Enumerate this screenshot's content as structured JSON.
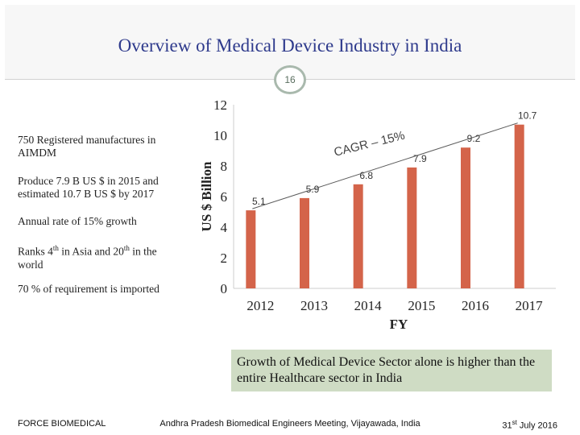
{
  "header": {
    "title": "Overview of Medical Device Industry in India",
    "slide_number": "16"
  },
  "bullets": [
    "750 Registered manufactures in AIMDM",
    "Produce 7.9 B US $ in 2015 and estimated 10.7 B US $ by 2017",
    "Annual rate of 15% growth",
    {
      "before": "Ranks 4",
      "sup1": "th",
      "middle": " in Asia and 20",
      "sup2": "th",
      "after": " in the world"
    },
    "70 % of requirement is imported"
  ],
  "note": "Growth of Medical Device Sector alone is higher than the entire Healthcare sector in India",
  "footer": {
    "left": "FORCE BIOMEDICAL",
    "center": "Andhra Pradesh Biomedical Engineers Meeting, Vijayawada, India",
    "right_day": "31",
    "right_sup": "st",
    "right_rest": " July 2016"
  },
  "colors": {
    "bar": "#d4644a",
    "title": "#2e3a8c",
    "note_bg": "#cfdcc4"
  },
  "chart_data": {
    "type": "bar",
    "categories": [
      "2012",
      "2013",
      "2014",
      "2015",
      "2016",
      "2017"
    ],
    "values": [
      5.1,
      5.9,
      6.8,
      7.9,
      9.2,
      10.7
    ],
    "data_labels": [
      "5.1",
      "5.9",
      "6.8",
      "7.9",
      "9.2",
      "10.7"
    ],
    "ylabel": "US $ Billion",
    "xlabel": "FY",
    "yticks": [
      "0",
      "2",
      "4",
      "6",
      "8",
      "10",
      "12"
    ],
    "ylim": [
      0,
      12
    ],
    "annotation": "CAGR – 15%",
    "trendline": {
      "from": "2012",
      "to": "2017"
    }
  }
}
